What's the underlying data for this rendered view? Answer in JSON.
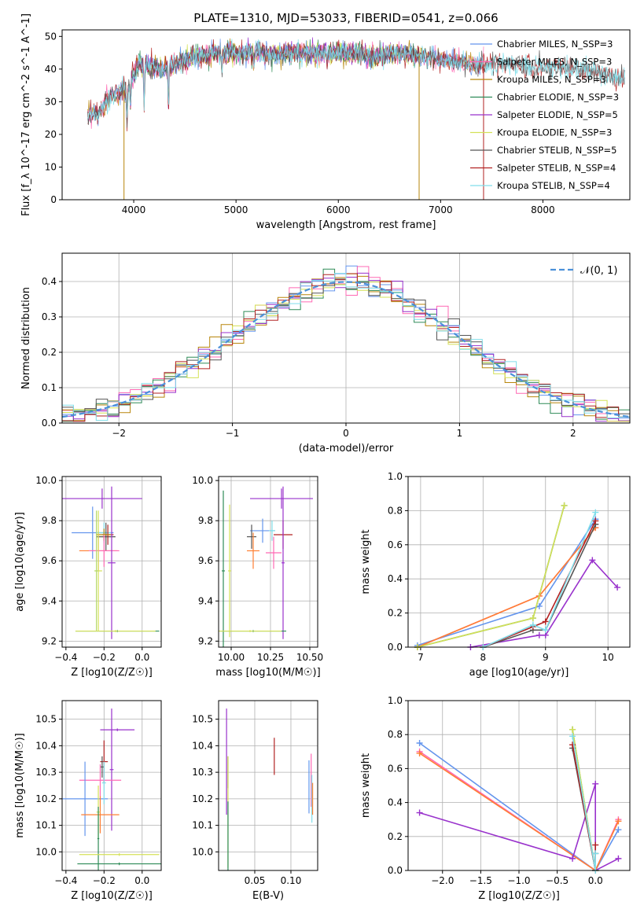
{
  "title": "PLATE=1310, MJD=53033, FIBERID=0541, z=0.066",
  "colors": {
    "Chabrier MILES": "#6495ed",
    "Salpeter MILES": "#ff69b4",
    "Kroupa MILES": "#b8860b",
    "Chabrier ELODIE": "#2e8b57",
    "Salpeter ELODIE": "#9932cc",
    "Kroupa ELODIE": "#d4e157",
    "Chabrier STELIB": "#555555",
    "Salpeter STELIB": "#b22222",
    "Kroupa STELIB": "#80deea",
    "orange": "#ff7f32",
    "lime": "#b5d96b",
    "gaussian": "#4a90d9"
  },
  "chart_data": [
    {
      "id": "spectrum",
      "type": "line",
      "xlabel": "wavelength [Angstrom, rest frame]",
      "ylabel": "Flux [f_λ 10^-17 erg cm^-2 s^-1 A^-1]",
      "xlim": [
        3300,
        8850
      ],
      "ylim": [
        0,
        52
      ],
      "xticks": [
        4000,
        5000,
        6000,
        7000,
        8000
      ],
      "yticks": [
        0,
        10,
        20,
        30,
        40,
        50
      ],
      "legend_position": "top-right",
      "series": [
        {
          "name": "Chabrier MILES, N_SSP=3",
          "key": "Chabrier MILES"
        },
        {
          "name": "Salpeter MILES, N_SSP=3",
          "key": "Salpeter MILES"
        },
        {
          "name": "Kroupa MILES, N_SSP=3",
          "key": "Kroupa MILES"
        },
        {
          "name": "Chabrier ELODIE, N_SSP=3",
          "key": "Chabrier ELODIE"
        },
        {
          "name": "Salpeter ELODIE, N_SSP=5",
          "key": "Salpeter ELODIE"
        },
        {
          "name": "Kroupa ELODIE, N_SSP=3",
          "key": "Kroupa ELODIE"
        },
        {
          "name": "Chabrier STELIB, N_SSP=5",
          "key": "Chabrier STELIB"
        },
        {
          "name": "Salpeter STELIB, N_SSP=4",
          "key": "Salpeter STELIB"
        },
        {
          "name": "Kroupa STELIB, N_SSP=4",
          "key": "Kroupa STELIB"
        }
      ],
      "continuum": [
        [
          3550,
          26
        ],
        [
          3650,
          26
        ],
        [
          3750,
          31
        ],
        [
          3850,
          33
        ],
        [
          3950,
          34
        ],
        [
          4050,
          42
        ],
        [
          4150,
          41
        ],
        [
          4300,
          40
        ],
        [
          4450,
          42
        ],
        [
          4600,
          44
        ],
        [
          4800,
          45
        ],
        [
          5000,
          45
        ],
        [
          5200,
          45
        ],
        [
          5400,
          44.5
        ],
        [
          5600,
          45
        ],
        [
          5800,
          45
        ],
        [
          6000,
          45
        ],
        [
          6200,
          44.5
        ],
        [
          6400,
          44
        ],
        [
          6600,
          45
        ],
        [
          6800,
          44
        ],
        [
          7000,
          43
        ],
        [
          7200,
          42
        ],
        [
          7400,
          41.5
        ],
        [
          7600,
          42
        ],
        [
          7800,
          41
        ],
        [
          8000,
          40.5
        ],
        [
          8200,
          40
        ],
        [
          8400,
          40
        ],
        [
          8600,
          38
        ],
        [
          8800,
          37
        ]
      ]
    },
    {
      "id": "residuals",
      "type": "histogram",
      "xlabel": "(data-model)/error",
      "ylabel": "Normed distribution",
      "xlim": [
        -2.5,
        2.5
      ],
      "ylim": [
        0,
        0.48
      ],
      "xticks": [
        -2,
        -1,
        0,
        1,
        2
      ],
      "yticks": [
        0.0,
        0.1,
        0.2,
        0.3,
        0.4
      ],
      "grid": true,
      "legend": "𝒩(0, 1)",
      "legend_position": "top-right",
      "bin_width": 0.1
    },
    {
      "id": "age_vs_Z",
      "type": "errorbar",
      "xlabel": "Z [log10(Z/Z☉)]",
      "ylabel": "age  [log10(age/yr)]",
      "xlim": [
        -0.42,
        0.1
      ],
      "ylim": [
        9.17,
        10.02
      ],
      "xticks": [
        -0.4,
        -0.2,
        0.0
      ],
      "yticks": [
        9.2,
        9.4,
        9.6,
        9.8,
        10.0
      ],
      "grid": true,
      "points": [
        {
          "x": -0.21,
          "xerr": 0.21,
          "y": 9.91,
          "yerr": 0.05,
          "c": "Salpeter ELODIE"
        },
        {
          "x": -0.26,
          "xerr": 0.11,
          "y": 9.74,
          "yerr": 0.13,
          "c": "Chabrier MILES"
        },
        {
          "x": -0.2,
          "xerr": 0.04,
          "y": 9.74,
          "yerr": 0.05,
          "c": "Kroupa STELIB"
        },
        {
          "x": -0.19,
          "xerr": 0.05,
          "y": 9.72,
          "yerr": 0.07,
          "c": "Chabrier STELIB"
        },
        {
          "x": -0.18,
          "xerr": 0.03,
          "y": 9.73,
          "yerr": 0.05,
          "c": "Salpeter STELIB"
        },
        {
          "x": -0.2,
          "xerr": 0.04,
          "y": 9.73,
          "yerr": 0.03,
          "c": "Kroupa MILES"
        },
        {
          "x": -0.23,
          "xerr": 0.1,
          "y": 9.65,
          "yerr": 0.1,
          "c": "orange"
        },
        {
          "x": -0.2,
          "xerr": 0.08,
          "y": 9.65,
          "yerr": 0.08,
          "c": "Salpeter MILES"
        },
        {
          "x": -0.16,
          "xerr": 0.02,
          "y": 9.59,
          "yerr": 0.38,
          "c": "Salpeter ELODIE"
        },
        {
          "x": -0.23,
          "xerr": 0.02,
          "y": 9.55,
          "yerr": 0.3,
          "c": "Kroupa ELODIE"
        },
        {
          "x": -0.24,
          "xerr": 0.01,
          "y": 9.55,
          "yerr": 0.3,
          "c": "lime"
        },
        {
          "x": -0.13,
          "xerr": 0.22,
          "y": 9.25,
          "yerr": 0.005,
          "c": "Chabrier ELODIE"
        },
        {
          "x": -0.14,
          "xerr": 0.21,
          "y": 9.25,
          "yerr": 0.005,
          "c": "Kroupa ELODIE"
        }
      ]
    },
    {
      "id": "age_vs_mass",
      "type": "errorbar",
      "xlabel": "mass [log10(M/M☉)]",
      "ylabel": "",
      "xlim": [
        9.92,
        10.55
      ],
      "ylim": [
        9.17,
        10.02
      ],
      "xticks": [
        10.0,
        10.25,
        10.5
      ],
      "xticklabels": [
        "10.00",
        "10.25",
        "10.50"
      ],
      "yticks": [
        9.2,
        9.4,
        9.6,
        9.8,
        10.0
      ],
      "grid": true,
      "points": [
        {
          "x": 10.32,
          "xerr": 0.2,
          "y": 9.91,
          "yerr": 0.05,
          "c": "Salpeter ELODIE"
        },
        {
          "x": 10.33,
          "xerr": 0.06,
          "y": 9.73,
          "yerr": 0.07,
          "c": "Salpeter STELIB"
        },
        {
          "x": 10.2,
          "xerr": 0.08,
          "y": 9.75,
          "yerr": 0.06,
          "c": "Chabrier MILES"
        },
        {
          "x": 10.26,
          "xerr": 0.02,
          "y": 9.75,
          "yerr": 0.05,
          "c": "Kroupa STELIB"
        },
        {
          "x": 10.13,
          "xerr": 0.03,
          "y": 9.72,
          "yerr": 0.06,
          "c": "Chabrier STELIB"
        },
        {
          "x": 10.14,
          "xerr": 0.04,
          "y": 9.65,
          "yerr": 0.09,
          "c": "orange"
        },
        {
          "x": 10.27,
          "xerr": 0.05,
          "y": 9.64,
          "yerr": 0.08,
          "c": "Salpeter MILES"
        },
        {
          "x": 10.33,
          "xerr": 0.01,
          "y": 9.59,
          "yerr": 0.38,
          "c": "Salpeter ELODIE"
        },
        {
          "x": 9.95,
          "xerr": 0.01,
          "y": 9.55,
          "yerr": 0.4,
          "c": "Chabrier ELODIE"
        },
        {
          "x": 9.99,
          "xerr": 0.01,
          "y": 9.55,
          "yerr": 0.33,
          "c": "Kroupa ELODIE"
        },
        {
          "x": 10.14,
          "xerr": 0.21,
          "y": 9.25,
          "yerr": 0.005,
          "c": "Chabrier ELODIE"
        },
        {
          "x": 10.12,
          "xerr": 0.2,
          "y": 9.25,
          "yerr": 0.005,
          "c": "Kroupa ELODIE"
        }
      ]
    },
    {
      "id": "massweight_vs_age",
      "type": "line",
      "xlabel": "age  [log10(age/yr)]",
      "ylabel": "mass weight",
      "xlim": [
        6.8,
        10.35
      ],
      "ylim": [
        0,
        1.0
      ],
      "xticks": [
        7,
        8,
        9,
        10
      ],
      "yticks": [
        0.0,
        0.2,
        0.4,
        0.6,
        0.8,
        1.0
      ],
      "grid": true,
      "series": [
        {
          "c": "Chabrier MILES",
          "x": [
            6.95,
            8.9,
            9.8
          ],
          "y": [
            0.01,
            0.24,
            0.75
          ]
        },
        {
          "c": "Salpeter MILES",
          "x": [
            6.95,
            8.9,
            9.8
          ],
          "y": [
            0.0,
            0.3,
            0.7
          ]
        },
        {
          "c": "orange",
          "x": [
            6.95,
            8.9,
            9.8
          ],
          "y": [
            0.0,
            0.3,
            0.7
          ]
        },
        {
          "c": "Chabrier ELODIE",
          "x": [
            6.95,
            8.8,
            9.3
          ],
          "y": [
            0.0,
            0.17,
            0.83
          ]
        },
        {
          "c": "Kroupa ELODIE",
          "x": [
            6.95,
            8.8,
            9.3
          ],
          "y": [
            0.0,
            0.17,
            0.83
          ]
        },
        {
          "c": "Salpeter ELODIE",
          "x": [
            7.8,
            8.9,
            9.0,
            9.75,
            10.15
          ],
          "y": [
            0.0,
            0.07,
            0.07,
            0.51,
            0.35
          ]
        },
        {
          "c": "Chabrier STELIB",
          "x": [
            8.0,
            8.8,
            9.0,
            9.8
          ],
          "y": [
            0.0,
            0.1,
            0.1,
            0.72
          ]
        },
        {
          "c": "Salpeter STELIB",
          "x": [
            8.0,
            8.8,
            9.0,
            9.8
          ],
          "y": [
            0.0,
            0.12,
            0.15,
            0.74
          ]
        },
        {
          "c": "Kroupa STELIB",
          "x": [
            8.0,
            8.8,
            9.0,
            9.8
          ],
          "y": [
            0.0,
            0.13,
            0.1,
            0.79
          ]
        }
      ]
    },
    {
      "id": "mass_vs_Z",
      "type": "errorbar",
      "xlabel": "Z [log10(Z/Z☉)]",
      "ylabel": "mass [log10(M/M☉)]",
      "xlim": [
        -0.42,
        0.1
      ],
      "ylim": [
        9.93,
        10.57
      ],
      "xticks": [
        -0.4,
        -0.2,
        0.0
      ],
      "yticks": [
        10.0,
        10.1,
        10.2,
        10.3,
        10.4,
        10.5
      ],
      "grid": true,
      "points": [
        {
          "x": -0.13,
          "xerr": 0.09,
          "y": 10.46,
          "yerr": 0.005,
          "c": "Salpeter ELODIE"
        },
        {
          "x": -0.16,
          "xerr": 0.01,
          "y": 10.31,
          "yerr": 0.23,
          "c": "Salpeter ELODIE"
        },
        {
          "x": -0.2,
          "xerr": 0.02,
          "y": 10.34,
          "yerr": 0.08,
          "c": "Salpeter STELIB"
        },
        {
          "x": -0.21,
          "xerr": 0.01,
          "y": 10.32,
          "yerr": 0.04,
          "c": "Chabrier STELIB"
        },
        {
          "x": -0.22,
          "xerr": 0.11,
          "y": 10.27,
          "yerr": 0.06,
          "c": "Salpeter MILES"
        },
        {
          "x": -0.3,
          "xerr": 0.12,
          "y": 10.2,
          "yerr": 0.14,
          "c": "Chabrier MILES"
        },
        {
          "x": -0.22,
          "xerr": 0.1,
          "y": 10.14,
          "yerr": 0.07,
          "c": "orange"
        },
        {
          "x": -0.2,
          "xerr": 0.01,
          "y": 10.26,
          "yerr": 0.08,
          "c": "Kroupa STELIB"
        },
        {
          "x": -0.23,
          "xerr": 0.01,
          "y": 10.15,
          "yerr": 0.1,
          "c": "Kroupa ELODIE"
        },
        {
          "x": -0.23,
          "xerr": 0.005,
          "y": 10.05,
          "yerr": 0.12,
          "c": "Chabrier ELODIE"
        },
        {
          "x": -0.12,
          "xerr": 0.21,
          "y": 9.99,
          "yerr": 0.005,
          "c": "Kroupa ELODIE"
        },
        {
          "x": -0.12,
          "xerr": 0.22,
          "y": 9.955,
          "yerr": 0.005,
          "c": "Chabrier ELODIE"
        }
      ]
    },
    {
      "id": "mass_vs_EBV",
      "type": "errorbar",
      "xlabel": "E(B-V)",
      "ylabel": "",
      "xlim": [
        0.0,
        0.137
      ],
      "ylim": [
        9.93,
        10.57
      ],
      "xticks": [
        0.05,
        0.1
      ],
      "xticklabels": [
        "0.05",
        "0.10"
      ],
      "yticks": [
        10.0,
        10.1,
        10.2,
        10.3,
        10.4,
        10.5
      ],
      "grid": true,
      "points": [
        {
          "x": 0.011,
          "xerr": 0.0,
          "y": 10.34,
          "yerr": 0.2,
          "c": "Salpeter ELODIE"
        },
        {
          "x": 0.013,
          "xerr": 0.0,
          "y": 10.3,
          "yerr": 0.06,
          "c": "Chabrier STELIB"
        },
        {
          "x": 0.013,
          "xerr": 0.0,
          "y": 10.15,
          "yerr": 0.21,
          "c": "Kroupa ELODIE"
        },
        {
          "x": 0.013,
          "xerr": 0.0,
          "y": 10.06,
          "yerr": 0.13,
          "c": "Chabrier ELODIE"
        },
        {
          "x": 0.077,
          "xerr": 0.0,
          "y": 10.36,
          "yerr": 0.07,
          "c": "Salpeter STELIB"
        },
        {
          "x": 0.125,
          "xerr": 0.0,
          "y": 10.245,
          "yerr": 0.1,
          "c": "Chabrier MILES"
        },
        {
          "x": 0.128,
          "xerr": 0.0,
          "y": 10.27,
          "yerr": 0.1,
          "c": "Salpeter MILES"
        },
        {
          "x": 0.129,
          "xerr": 0.0,
          "y": 10.2,
          "yerr": 0.09,
          "c": "Kroupa STELIB"
        },
        {
          "x": 0.13,
          "xerr": 0.0,
          "y": 10.2,
          "yerr": 0.06,
          "c": "orange"
        }
      ]
    },
    {
      "id": "massweight_vs_Z",
      "type": "line",
      "xlabel": "Z [log10(Z/Z☉)]",
      "ylabel": "mass weight",
      "xlim": [
        -2.45,
        0.45
      ],
      "ylim": [
        0,
        1.0
      ],
      "xticks": [
        -2.0,
        -1.5,
        -1.0,
        -0.5,
        0.0
      ],
      "yticks": [
        0.0,
        0.2,
        0.4,
        0.6,
        0.8,
        1.0
      ],
      "grid": true,
      "series": [
        {
          "c": "Chabrier MILES",
          "x": [
            -2.3,
            0.0,
            0.3
          ],
          "y": [
            0.75,
            0.0,
            0.24
          ]
        },
        {
          "c": "Salpeter MILES",
          "x": [
            -2.3,
            0.0,
            0.3
          ],
          "y": [
            0.7,
            0.0,
            0.3
          ]
        },
        {
          "c": "orange",
          "x": [
            -2.3,
            0.0,
            0.3
          ],
          "y": [
            0.69,
            0.0,
            0.29
          ]
        },
        {
          "c": "Salpeter ELODIE",
          "x": [
            -2.3,
            -0.3,
            0.0,
            0.0,
            0.3
          ],
          "y": [
            0.34,
            0.07,
            0.51,
            0.0,
            0.07
          ]
        },
        {
          "c": "Chabrier ELODIE",
          "x": [
            -0.3,
            0.0
          ],
          "y": [
            0.83,
            0.0
          ]
        },
        {
          "c": "Kroupa ELODIE",
          "x": [
            -0.3,
            0.0
          ],
          "y": [
            0.83,
            0.0
          ]
        },
        {
          "c": "Chabrier STELIB",
          "x": [
            -0.3,
            0.0,
            0.0
          ],
          "y": [
            0.72,
            0.0,
            0.1
          ]
        },
        {
          "c": "Salpeter STELIB",
          "x": [
            -0.3,
            0.0,
            0.0
          ],
          "y": [
            0.74,
            0.0,
            0.15
          ]
        },
        {
          "c": "Kroupa STELIB",
          "x": [
            -0.3,
            0.0,
            0.0
          ],
          "y": [
            0.79,
            0.0,
            0.1
          ]
        }
      ]
    }
  ]
}
